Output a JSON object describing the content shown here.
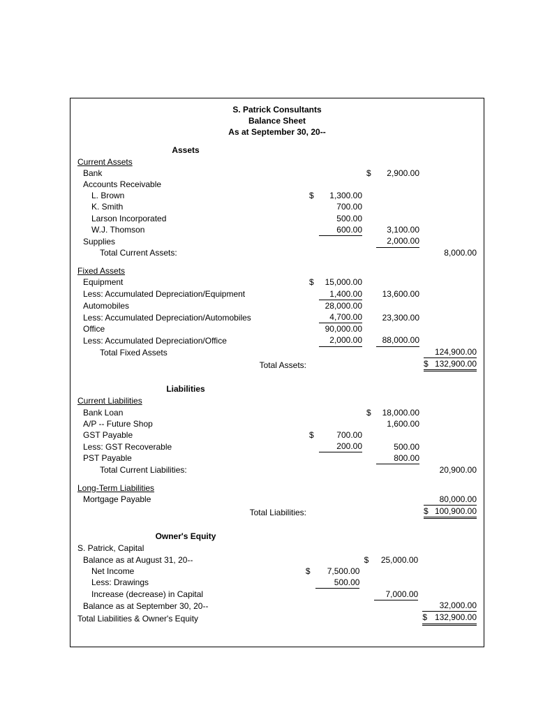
{
  "header": {
    "company": "S. Patrick Consultants",
    "title": "Balance Sheet",
    "asof": "As at September 30, 20--"
  },
  "assets": {
    "heading": "Assets",
    "current": {
      "heading": "Current Assets",
      "bank": {
        "label": "Bank",
        "sym": "$",
        "value": "2,900.00"
      },
      "ar_label": "Accounts Receivable",
      "ar": [
        {
          "name": "L. Brown",
          "sym": "$",
          "value": "1,300.00"
        },
        {
          "name": "K. Smith",
          "sym": "",
          "value": "700.00"
        },
        {
          "name": "Larson Incorporated",
          "sym": "",
          "value": "500.00"
        },
        {
          "name": "W.J. Thomson",
          "sym": "",
          "value": "600.00"
        }
      ],
      "ar_total": "3,100.00",
      "supplies": {
        "label": "Supplies",
        "value": "2,000.00"
      },
      "total_label": "Total Current Assets:",
      "total": "8,000.00"
    },
    "fixed": {
      "heading": "Fixed Assets",
      "rows": [
        {
          "label": "Equipment",
          "sym": "$",
          "c1": "15,000.00"
        },
        {
          "label": "Less: Accumulated Depreciation/Equipment",
          "c1": "1,400.00",
          "c1_underline": true,
          "c2": "13,600.00"
        },
        {
          "label": "Automobiles",
          "c1": "28,000.00"
        },
        {
          "label": "Less: Accumulated Depreciation/Automobiles",
          "c1": "4,700.00",
          "c1_underline": true,
          "c2": "23,300.00"
        },
        {
          "label": "Office",
          "c1": "90,000.00"
        },
        {
          "label": "Less: Accumulated Depreciation/Office",
          "c1": "2,000.00",
          "c1_underline": true,
          "c2": "88,000.00",
          "c2_underline": true
        }
      ],
      "total_label": "Total Fixed Assets",
      "total": "124,900.00"
    },
    "total_label": "Total Assets:",
    "total_sym": "$",
    "total": "132,900.00"
  },
  "liabilities": {
    "heading": "Liabilities",
    "current": {
      "heading": "Current Liabilities",
      "rows": [
        {
          "label": "Bank Loan",
          "sym2": "$",
          "c2": "18,000.00"
        },
        {
          "label": "A/P -- Future Shop",
          "c2": "1,600.00"
        },
        {
          "label": "GST Payable",
          "sym1": "$",
          "c1": "700.00"
        },
        {
          "label": "Less: GST Recoverable",
          "c1": "200.00",
          "c1_underline": true,
          "c2": "500.00"
        },
        {
          "label": "PST Payable",
          "c2": "800.00",
          "c2_underline": true
        }
      ],
      "total_label": "Total Current Liabilities:",
      "total": "20,900.00"
    },
    "longterm": {
      "heading": "Long-Term Liabilities",
      "mortgage": {
        "label": "Mortgage Payable",
        "value": "80,000.00"
      }
    },
    "total_label": "Total Liabilities:",
    "total_sym": "$",
    "total": "100,900.00"
  },
  "equity": {
    "heading": "Owner's Equity",
    "capital_label": "S. Patrick, Capital",
    "opening": {
      "label": "Balance as at August 31, 20--",
      "sym": "$",
      "value": "25,000.00"
    },
    "netincome": {
      "label": "Net Income",
      "sym": "$",
      "value": "7,500.00"
    },
    "drawings": {
      "label": "Less: Drawings",
      "value": "500.00"
    },
    "change": {
      "label": "Increase (decrease) in Capital",
      "value": "7,000.00"
    },
    "closing": {
      "label": "Balance as at September 30, 20--",
      "value": "32,000.00"
    },
    "total_label": "Total Liabilities & Owner's Equity",
    "total_sym": "$",
    "total": "132,900.00"
  }
}
